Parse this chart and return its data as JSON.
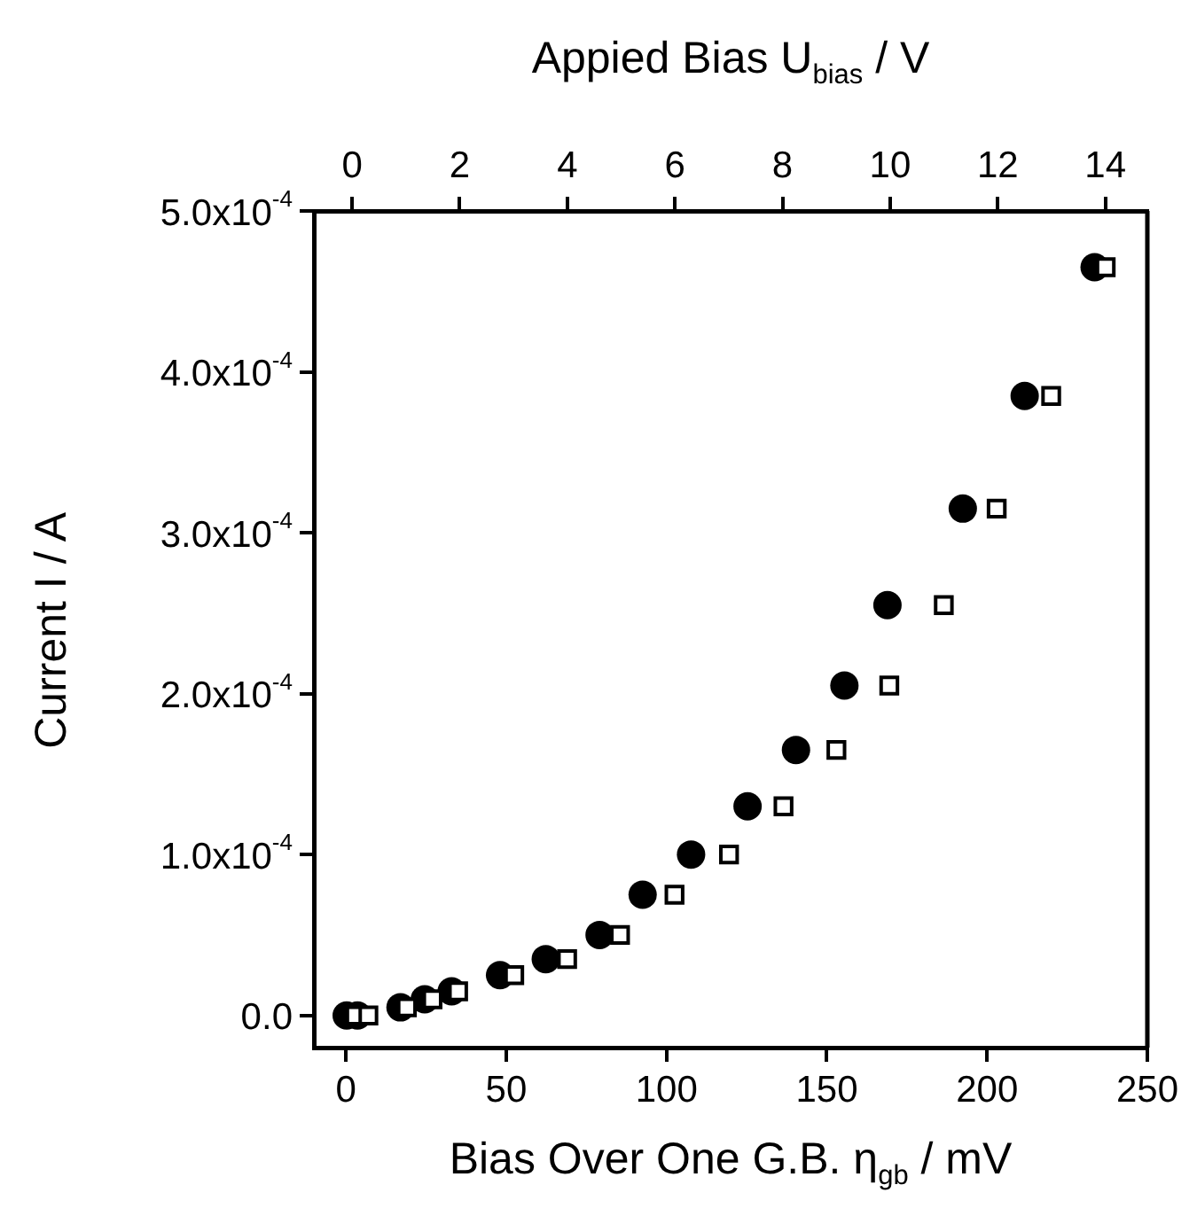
{
  "chart_data": {
    "type": "scatter",
    "xlabel": "Bias Over One G.B. η$_{gb}$ / mV",
    "x2label": "Appied Bias U$_{bias}$ / V",
    "ylabel": "Current I / A",
    "xlim": [
      -10,
      250
    ],
    "xticks": [
      0,
      50,
      100,
      150,
      200,
      250
    ],
    "x2lim": [
      -0.71,
      14.78
    ],
    "x2ticks": [
      0,
      2,
      4,
      6,
      8,
      10,
      12,
      14
    ],
    "ylim": [
      -2e-05,
      0.0005
    ],
    "yticks": [
      {
        "value": 0,
        "label": "0.0"
      },
      {
        "value": 0.0001,
        "label": "1.0x10$^{-4}$"
      },
      {
        "value": 0.0002,
        "label": "2.0x10$^{-4}$"
      },
      {
        "value": 0.0003,
        "label": "3.0x10$^{-4}$"
      },
      {
        "value": 0.0004,
        "label": "4.0x10$^{-4}$"
      },
      {
        "value": 0.0005,
        "label": "5.0x10$^{-4}$"
      }
    ],
    "series": [
      {
        "color": "#000000",
        "marker": "circle",
        "axis": "x2",
        "x": [
          -0.1,
          0.1,
          0.9,
          1.35,
          1.85,
          2.75,
          3.6,
          4.6,
          5.4,
          6.3,
          7.35,
          8.25,
          9.15,
          9.95,
          11.35,
          12.5,
          13.8
        ],
        "values": [
          0,
          0,
          5e-06,
          1e-05,
          1.5e-05,
          2.5e-05,
          3.5e-05,
          5e-05,
          7.5e-05,
          0.0001,
          0.00013,
          0.000165,
          0.000205,
          0.000255,
          0.000315,
          0.000385,
          0.000465
        ]
      },
      {
        "color": "#000000",
        "marker": "square",
        "x": [
          3,
          7,
          19,
          27,
          35,
          52.5,
          69,
          85.5,
          102.5,
          119.5,
          136.5,
          153,
          169.5,
          186.5,
          203,
          220,
          237
        ],
        "values": [
          0,
          0,
          5e-06,
          1e-05,
          1.5e-05,
          2.5e-05,
          3.5e-05,
          5e-05,
          7.5e-05,
          0.0001,
          0.00013,
          0.000165,
          0.000205,
          0.000255,
          0.000315,
          0.000385,
          0.000465
        ]
      }
    ]
  }
}
